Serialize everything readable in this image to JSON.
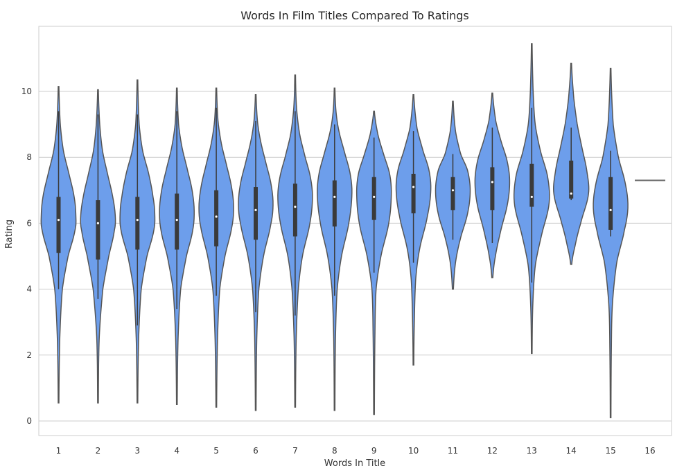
{
  "chart_data": {
    "type": "violin",
    "title": "Words In Film Titles Compared To Ratings",
    "xlabel": "Words In Title",
    "ylabel": "Rating",
    "ylim": [
      -0.45,
      11.95
    ],
    "yticks": [
      0,
      2,
      4,
      6,
      8,
      10
    ],
    "grid": "horizontal",
    "colors": {
      "violin_fill": "#6d9eeb",
      "violin_edge": "#555555",
      "inner_box": "#3a3a3a",
      "median_dot": "#ffffff",
      "grid": "#cccccc",
      "frame": "#cccccc"
    },
    "categories": [
      "1",
      "2",
      "3",
      "4",
      "5",
      "6",
      "7",
      "8",
      "9",
      "10",
      "11",
      "12",
      "13",
      "14",
      "15",
      "16"
    ],
    "violins": [
      {
        "category": "1",
        "min": 0.55,
        "max": 10.15,
        "q1": 5.1,
        "median": 6.1,
        "q3": 6.8,
        "whisker_low": 4.0,
        "whisker_high": 9.4,
        "profile": [
          [
            0.55,
            0.02
          ],
          [
            2.5,
            0.07
          ],
          [
            4.0,
            0.22
          ],
          [
            5.0,
            0.55
          ],
          [
            5.8,
            0.95
          ],
          [
            6.2,
            1.0
          ],
          [
            6.8,
            0.9
          ],
          [
            7.5,
            0.6
          ],
          [
            8.2,
            0.28
          ],
          [
            9.0,
            0.1
          ],
          [
            10.15,
            0.02
          ]
        ]
      },
      {
        "category": "2",
        "min": 0.55,
        "max": 10.05,
        "q1": 4.9,
        "median": 6.0,
        "q3": 6.7,
        "whisker_low": 3.7,
        "whisker_high": 9.3,
        "profile": [
          [
            0.55,
            0.02
          ],
          [
            2.5,
            0.07
          ],
          [
            4.0,
            0.28
          ],
          [
            5.0,
            0.62
          ],
          [
            5.8,
            0.95
          ],
          [
            6.2,
            1.0
          ],
          [
            6.8,
            0.85
          ],
          [
            7.5,
            0.55
          ],
          [
            8.2,
            0.26
          ],
          [
            9.0,
            0.1
          ],
          [
            10.05,
            0.02
          ]
        ]
      },
      {
        "category": "3",
        "min": 0.55,
        "max": 10.35,
        "q1": 5.2,
        "median": 6.1,
        "q3": 6.8,
        "whisker_low": 2.9,
        "whisker_high": 9.3,
        "profile": [
          [
            0.55,
            0.02
          ],
          [
            2.5,
            0.07
          ],
          [
            4.0,
            0.22
          ],
          [
            5.0,
            0.55
          ],
          [
            5.8,
            0.95
          ],
          [
            6.3,
            1.0
          ],
          [
            6.8,
            0.9
          ],
          [
            7.5,
            0.65
          ],
          [
            8.2,
            0.3
          ],
          [
            9.0,
            0.1
          ],
          [
            10.35,
            0.02
          ]
        ]
      },
      {
        "category": "4",
        "min": 0.5,
        "max": 10.1,
        "q1": 5.2,
        "median": 6.1,
        "q3": 6.9,
        "whisker_low": 3.4,
        "whisker_high": 9.4,
        "profile": [
          [
            0.5,
            0.02
          ],
          [
            2.5,
            0.07
          ],
          [
            4.0,
            0.22
          ],
          [
            5.0,
            0.55
          ],
          [
            5.8,
            0.92
          ],
          [
            6.4,
            1.0
          ],
          [
            7.0,
            0.88
          ],
          [
            7.6,
            0.62
          ],
          [
            8.3,
            0.3
          ],
          [
            9.0,
            0.1
          ],
          [
            10.1,
            0.02
          ]
        ]
      },
      {
        "category": "5",
        "min": 0.42,
        "max": 10.1,
        "q1": 5.3,
        "median": 6.2,
        "q3": 7.0,
        "whisker_low": 3.8,
        "whisker_high": 9.5,
        "profile": [
          [
            0.42,
            0.02
          ],
          [
            2.5,
            0.07
          ],
          [
            4.0,
            0.2
          ],
          [
            5.0,
            0.5
          ],
          [
            5.9,
            0.9
          ],
          [
            6.5,
            1.0
          ],
          [
            7.1,
            0.88
          ],
          [
            7.7,
            0.62
          ],
          [
            8.4,
            0.3
          ],
          [
            9.1,
            0.1
          ],
          [
            10.1,
            0.02
          ]
        ]
      },
      {
        "category": "6",
        "min": 0.32,
        "max": 9.9,
        "q1": 5.5,
        "median": 6.4,
        "q3": 7.1,
        "whisker_low": 3.3,
        "whisker_high": 9.1,
        "profile": [
          [
            0.32,
            0.02
          ],
          [
            2.5,
            0.06
          ],
          [
            4.0,
            0.18
          ],
          [
            5.0,
            0.45
          ],
          [
            6.0,
            0.88
          ],
          [
            6.6,
            1.0
          ],
          [
            7.2,
            0.88
          ],
          [
            7.8,
            0.6
          ],
          [
            8.5,
            0.28
          ],
          [
            9.1,
            0.1
          ],
          [
            9.9,
            0.02
          ]
        ]
      },
      {
        "category": "7",
        "min": 0.42,
        "max": 10.5,
        "q1": 5.6,
        "median": 6.5,
        "q3": 7.2,
        "whisker_low": 3.2,
        "whisker_high": 9.4,
        "profile": [
          [
            0.42,
            0.02
          ],
          [
            2.5,
            0.06
          ],
          [
            4.0,
            0.18
          ],
          [
            5.0,
            0.42
          ],
          [
            6.0,
            0.85
          ],
          [
            6.8,
            1.0
          ],
          [
            7.4,
            0.88
          ],
          [
            8.0,
            0.58
          ],
          [
            8.7,
            0.26
          ],
          [
            9.5,
            0.08
          ],
          [
            10.5,
            0.02
          ]
        ]
      },
      {
        "category": "8",
        "min": 0.32,
        "max": 10.1,
        "q1": 5.9,
        "median": 6.8,
        "q3": 7.3,
        "whisker_low": 3.8,
        "whisker_high": 9.0,
        "profile": [
          [
            0.32,
            0.02
          ],
          [
            2.5,
            0.05
          ],
          [
            4.0,
            0.15
          ],
          [
            5.0,
            0.4
          ],
          [
            6.0,
            0.82
          ],
          [
            6.9,
            1.0
          ],
          [
            7.5,
            0.9
          ],
          [
            8.1,
            0.6
          ],
          [
            8.8,
            0.25
          ],
          [
            9.4,
            0.08
          ],
          [
            10.1,
            0.02
          ]
        ]
      },
      {
        "category": "9",
        "min": 0.2,
        "max": 9.4,
        "q1": 6.1,
        "median": 6.8,
        "q3": 7.4,
        "whisker_low": 4.5,
        "whisker_high": 8.6,
        "profile": [
          [
            0.2,
            0.02
          ],
          [
            2.5,
            0.05
          ],
          [
            4.0,
            0.12
          ],
          [
            5.0,
            0.4
          ],
          [
            6.0,
            0.85
          ],
          [
            6.9,
            1.0
          ],
          [
            7.5,
            0.9
          ],
          [
            8.1,
            0.55
          ],
          [
            8.7,
            0.22
          ],
          [
            9.4,
            0.02
          ]
        ]
      },
      {
        "category": "10",
        "min": 1.7,
        "max": 9.9,
        "q1": 6.3,
        "median": 7.1,
        "q3": 7.5,
        "whisker_low": 4.8,
        "whisker_high": 8.8,
        "profile": [
          [
            1.7,
            0.02
          ],
          [
            3.0,
            0.05
          ],
          [
            4.3,
            0.13
          ],
          [
            5.2,
            0.35
          ],
          [
            6.2,
            0.8
          ],
          [
            7.0,
            1.0
          ],
          [
            7.6,
            0.9
          ],
          [
            8.2,
            0.55
          ],
          [
            8.9,
            0.2
          ],
          [
            9.9,
            0.02
          ]
        ]
      },
      {
        "category": "11",
        "min": 4.0,
        "max": 9.7,
        "q1": 6.4,
        "median": 7.0,
        "q3": 7.4,
        "whisker_low": 5.5,
        "whisker_high": 8.1,
        "profile": [
          [
            4.0,
            0.03
          ],
          [
            4.8,
            0.15
          ],
          [
            5.5,
            0.42
          ],
          [
            6.3,
            0.85
          ],
          [
            7.0,
            1.0
          ],
          [
            7.6,
            0.85
          ],
          [
            8.1,
            0.45
          ],
          [
            8.8,
            0.15
          ],
          [
            9.7,
            0.02
          ]
        ]
      },
      {
        "category": "12",
        "min": 4.35,
        "max": 9.95,
        "q1": 6.4,
        "median": 7.25,
        "q3": 7.7,
        "whisker_low": 5.4,
        "whisker_high": 8.9,
        "profile": [
          [
            4.35,
            0.03
          ],
          [
            5.0,
            0.18
          ],
          [
            5.8,
            0.5
          ],
          [
            6.6,
            0.88
          ],
          [
            7.3,
            1.0
          ],
          [
            7.9,
            0.85
          ],
          [
            8.5,
            0.5
          ],
          [
            9.1,
            0.2
          ],
          [
            9.95,
            0.02
          ]
        ]
      },
      {
        "category": "13",
        "min": 2.05,
        "max": 11.45,
        "q1": 6.5,
        "median": 6.8,
        "q3": 7.8,
        "whisker_low": 4.2,
        "whisker_high": 9.5,
        "profile": [
          [
            2.05,
            0.02
          ],
          [
            3.5,
            0.06
          ],
          [
            4.7,
            0.2
          ],
          [
            5.6,
            0.55
          ],
          [
            6.6,
            1.0
          ],
          [
            7.4,
            0.92
          ],
          [
            8.2,
            0.5
          ],
          [
            9.0,
            0.2
          ],
          [
            10.0,
            0.08
          ],
          [
            11.45,
            0.02
          ]
        ]
      },
      {
        "category": "14",
        "min": 4.75,
        "max": 10.85,
        "q1": 6.75,
        "median": 6.9,
        "q3": 7.9,
        "whisker_low": 6.7,
        "whisker_high": 8.9,
        "profile": [
          [
            4.75,
            0.03
          ],
          [
            5.3,
            0.22
          ],
          [
            6.0,
            0.55
          ],
          [
            6.9,
            1.0
          ],
          [
            7.6,
            0.9
          ],
          [
            8.3,
            0.62
          ],
          [
            9.0,
            0.35
          ],
          [
            9.8,
            0.15
          ],
          [
            10.85,
            0.02
          ]
        ]
      },
      {
        "category": "15",
        "min": 0.1,
        "max": 10.7,
        "q1": 5.8,
        "median": 6.4,
        "q3": 7.4,
        "whisker_low": 5.6,
        "whisker_high": 8.2,
        "profile": [
          [
            0.1,
            0.02
          ],
          [
            2.0,
            0.04
          ],
          [
            3.5,
            0.1
          ],
          [
            4.8,
            0.35
          ],
          [
            5.8,
            0.8
          ],
          [
            6.5,
            1.0
          ],
          [
            7.2,
            0.85
          ],
          [
            8.0,
            0.45
          ],
          [
            9.0,
            0.15
          ],
          [
            10.7,
            0.02
          ]
        ]
      },
      {
        "category": "16",
        "single_value": 7.3
      }
    ]
  }
}
